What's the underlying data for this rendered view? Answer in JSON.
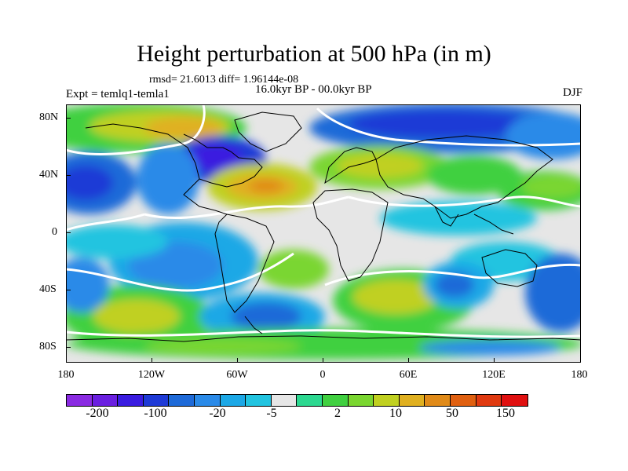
{
  "title": "Height perturbation at 500 hPa (in m)",
  "stats": "rmsd= 21.6013 diff= 1.96144e-08",
  "period": "16.0kyr BP - 00.0kyr BP",
  "experiment": "Expt = temlq1-temla1",
  "season": "DJF",
  "lat_ticks": [
    "80N",
    "40N",
    "0",
    "40S",
    "80S"
  ],
  "lon_ticks": [
    "180",
    "120W",
    "60W",
    "0",
    "60E",
    "120E",
    "180"
  ],
  "colorbar": {
    "colors": [
      "#8a2be2",
      "#6a1fe0",
      "#3a1ce0",
      "#1e3ad6",
      "#1e6ad8",
      "#2a8ae8",
      "#1ca8e6",
      "#22c4e0",
      "#e6e6e6",
      "#2cd890",
      "#40d040",
      "#7ad630",
      "#c0d020",
      "#e0b020",
      "#e08a18",
      "#e06010",
      "#e03a10",
      "#e01010"
    ],
    "labels": [
      "-200",
      "-100",
      "-20",
      "-5",
      "2",
      "10",
      "50",
      "150"
    ]
  },
  "colors": {
    "neutral": "#e6e6e6",
    "contour": "#ffffff",
    "coast": "#000000"
  }
}
